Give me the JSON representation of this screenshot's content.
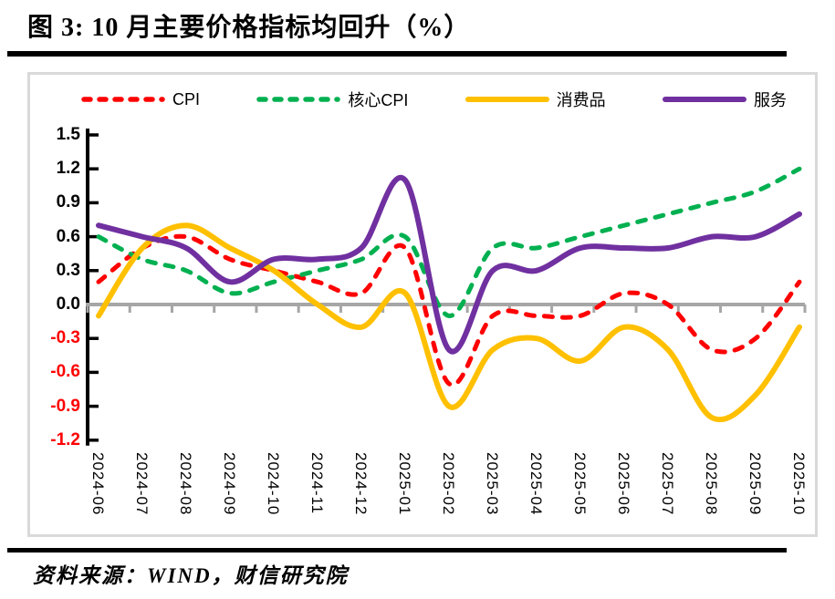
{
  "title": "图 3:  10 月主要价格指标均回升（%）",
  "source": "资料来源：WIND，财信研究院",
  "chart_data": {
    "type": "line",
    "title": "图 3: 10月主要价格指标均回升（%）",
    "x": [
      "2024-06",
      "2024-07",
      "2024-08",
      "2024-09",
      "2024-10",
      "2024-11",
      "2024-12",
      "2025-01",
      "2025-02",
      "2025-03",
      "2025-04",
      "2025-05",
      "2025-06",
      "2025-07",
      "2025-08",
      "2025-09",
      "2025-10"
    ],
    "series": [
      {
        "name": "CPI",
        "color": "#ff0000",
        "style": "dashed",
        "values": [
          0.2,
          0.5,
          0.6,
          0.4,
          0.3,
          0.2,
          0.1,
          0.5,
          -0.7,
          -0.1,
          -0.1,
          -0.1,
          0.1,
          0.0,
          -0.4,
          -0.3,
          0.2
        ]
      },
      {
        "name": "核心CPI",
        "color": "#00b050",
        "style": "dashed",
        "values": [
          0.6,
          0.4,
          0.3,
          0.1,
          0.2,
          0.3,
          0.4,
          0.6,
          -0.1,
          0.5,
          0.5,
          0.6,
          0.7,
          0.8,
          0.9,
          1.0,
          1.2
        ]
      },
      {
        "name": "消费品",
        "color": "#ffc000",
        "style": "solid",
        "values": [
          -0.1,
          0.5,
          0.7,
          0.5,
          0.3,
          0.0,
          -0.2,
          0.1,
          -0.9,
          -0.4,
          -0.3,
          -0.5,
          -0.2,
          -0.4,
          -1.0,
          -0.8,
          -0.2
        ]
      },
      {
        "name": "服务",
        "color": "#7030a0",
        "style": "solid",
        "values": [
          0.7,
          0.6,
          0.5,
          0.2,
          0.4,
          0.4,
          0.5,
          1.1,
          -0.4,
          0.3,
          0.3,
          0.5,
          0.5,
          0.5,
          0.6,
          0.6,
          0.8
        ]
      }
    ],
    "ylim": [
      -1.2,
      1.5
    ],
    "ytick_step": 0.3,
    "grid": false,
    "legend_position": "top",
    "axis_color": "#000000",
    "zero_line_color": "#a6a6a6",
    "negative_tick_color": "#ff0000"
  }
}
